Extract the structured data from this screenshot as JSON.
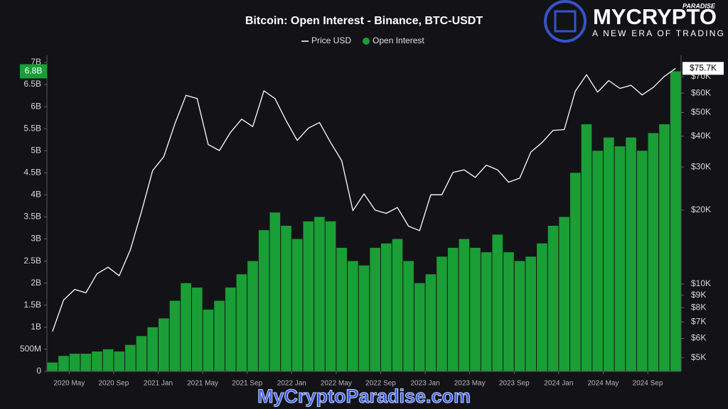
{
  "chart_data": {
    "type": "combo",
    "title": "Bitcoin: Open Interest - Binance, BTC-USDT",
    "legend": "top",
    "grid": false,
    "x": [
      "2020-03",
      "2020-04",
      "2020-05",
      "2020-06",
      "2020-07",
      "2020-08",
      "2020-09",
      "2020-10",
      "2020-11",
      "2020-12",
      "2021-01",
      "2021-02",
      "2021-03",
      "2021-04",
      "2021-05",
      "2021-06",
      "2021-07",
      "2021-08",
      "2021-09",
      "2021-10",
      "2021-11",
      "2021-12",
      "2022-01",
      "2022-02",
      "2022-03",
      "2022-04",
      "2022-05",
      "2022-06",
      "2022-07",
      "2022-08",
      "2022-09",
      "2022-10",
      "2022-11",
      "2022-12",
      "2023-01",
      "2023-02",
      "2023-03",
      "2023-04",
      "2023-05",
      "2023-06",
      "2023-07",
      "2023-08",
      "2023-09",
      "2023-10",
      "2023-11",
      "2023-12",
      "2024-01",
      "2024-02",
      "2024-03",
      "2024-04",
      "2024-05",
      "2024-06",
      "2024-07",
      "2024-08",
      "2024-09",
      "2024-10",
      "2024-11"
    ],
    "xticks": [
      {
        "value": "2020-05",
        "label": "2020 May"
      },
      {
        "value": "2020-09",
        "label": "2020 Sep"
      },
      {
        "value": "2021-01",
        "label": "2021 Jan"
      },
      {
        "value": "2021-05",
        "label": "2021 May"
      },
      {
        "value": "2021-09",
        "label": "2021 Sep"
      },
      {
        "value": "2022-01",
        "label": "2022 Jan"
      },
      {
        "value": "2022-05",
        "label": "2022 May"
      },
      {
        "value": "2022-09",
        "label": "2022 Sep"
      },
      {
        "value": "2023-01",
        "label": "2023 Jan"
      },
      {
        "value": "2023-05",
        "label": "2023 May"
      },
      {
        "value": "2023-09",
        "label": "2023 Sep"
      },
      {
        "value": "2024-01",
        "label": "2024 Jan"
      },
      {
        "value": "2024-05",
        "label": "2024 May"
      },
      {
        "value": "2024-09",
        "label": "2024 Sep"
      }
    ],
    "series": [
      {
        "name": "Price USD",
        "type": "line",
        "color": "#ffffff",
        "axis": "y2",
        "current_label": "$75.7K",
        "values": [
          6400,
          8600,
          9500,
          9200,
          11000,
          11700,
          10800,
          13800,
          19700,
          29000,
          33000,
          45000,
          58800,
          57000,
          37000,
          35000,
          41500,
          47000,
          43800,
          61300,
          57000,
          46300,
          38500,
          43200,
          45500,
          37700,
          31800,
          19900,
          23300,
          20000,
          19400,
          20500,
          17200,
          16500,
          23100,
          23100,
          28500,
          29200,
          27200,
          30500,
          29200,
          26000,
          27000,
          34500,
          37700,
          42300,
          42600,
          61200,
          71300,
          60600,
          67500,
          62700,
          64600,
          59000,
          63300,
          70200,
          75700
        ]
      },
      {
        "name": "Open Interest",
        "type": "bar",
        "color": "#1a9e36",
        "current_label": "6.8B",
        "values": [
          200000000,
          350000000,
          400000000,
          400000000,
          450000000,
          500000000,
          450000000,
          600000000,
          800000000,
          1000000000,
          1200000000,
          1600000000,
          2000000000,
          1900000000,
          1400000000,
          1600000000,
          1900000000,
          2200000000,
          2500000000,
          3200000000,
          3600000000,
          3300000000,
          3000000000,
          3400000000,
          3500000000,
          3400000000,
          2800000000,
          2500000000,
          2400000000,
          2800000000,
          2900000000,
          3000000000,
          2500000000,
          2000000000,
          2200000000,
          2600000000,
          2800000000,
          3000000000,
          2800000000,
          2700000000,
          3100000000,
          2700000000,
          2500000000,
          2600000000,
          2900000000,
          3300000000,
          3500000000,
          4500000000,
          5600000000,
          5000000000,
          5300000000,
          5100000000,
          5300000000,
          5000000000,
          5400000000,
          5600000000,
          6800000000
        ]
      }
    ],
    "ylim": [
      0,
      7000000000
    ],
    "yticks": [
      0,
      {
        "value": 500000000,
        "label": "500M"
      },
      {
        "value": 1000000000,
        "label": "1B"
      },
      {
        "value": 1500000000,
        "label": "1.5B"
      },
      {
        "value": 2000000000,
        "label": "2B"
      },
      {
        "value": 2500000000,
        "label": "2.5B"
      },
      {
        "value": 3000000000,
        "label": "3B"
      },
      {
        "value": 3500000000,
        "label": "3.5B"
      },
      {
        "value": 4000000000,
        "label": "4B"
      },
      {
        "value": 4500000000,
        "label": "4.5B"
      },
      {
        "value": 5000000000,
        "label": "5B"
      },
      {
        "value": 5500000000,
        "label": "5.5B"
      },
      {
        "value": 6000000000,
        "label": "6B"
      },
      {
        "value": 6500000000,
        "label": "6.5B"
      },
      {
        "value": 7000000000,
        "label": "7B"
      }
    ],
    "y2scale": "log",
    "y2lim": [
      4400,
      80000
    ],
    "y2ticks": [
      {
        "value": 5000,
        "label": "$5K"
      },
      {
        "value": 6000,
        "label": "$6K"
      },
      {
        "value": 7000,
        "label": "$7K"
      },
      {
        "value": 8000,
        "label": "$8K"
      },
      {
        "value": 9000,
        "label": "$9K"
      },
      {
        "value": 10000,
        "label": "$10K"
      },
      {
        "value": 20000,
        "label": "$20K"
      },
      {
        "value": 30000,
        "label": "$30K"
      },
      {
        "value": 40000,
        "label": "$40K"
      },
      {
        "value": 50000,
        "label": "$50K"
      },
      {
        "value": 60000,
        "label": "$60K"
      },
      {
        "value": 70000,
        "label": "$70K"
      }
    ]
  },
  "logo": {
    "name": "MYCRYPTO",
    "tag": "PARADISE",
    "slogan": "A NEW ERA OF TRADING"
  },
  "watermark": "MyCryptoParadise.com"
}
